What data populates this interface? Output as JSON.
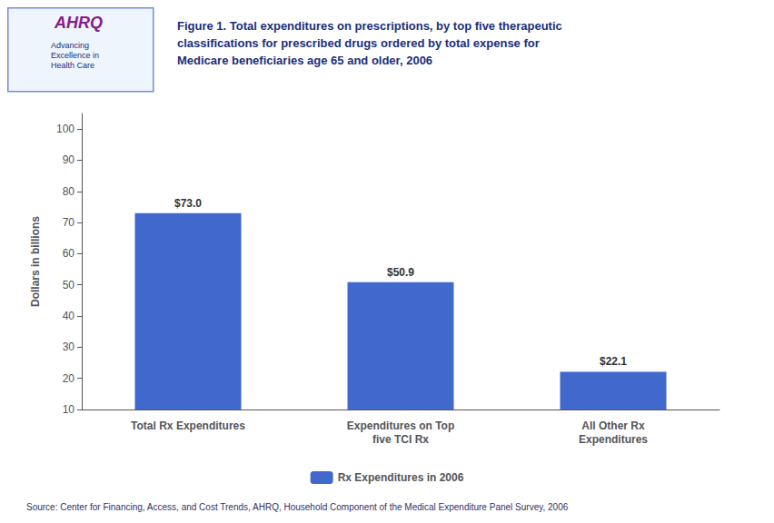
{
  "chart_data": {
    "type": "bar",
    "title": "Figure 1. Total expenditures on prescriptions, by top five therapeutic\nclassifications for prescribed drugs ordered by total expense for\nMedicare beneficiaries age 65 and older, 2006",
    "categories": [
      "Total Rx Expenditures",
      "Expenditures on Top\nfive TCI Rx",
      "All Other Rx\nExpenditures"
    ],
    "series": [
      {
        "name": "Rx Expenditures in 2006",
        "color": "#4169CD",
        "values": [
          73.0,
          50.9,
          22.1
        ],
        "value_labels": [
          "$73.0",
          "$50.9",
          "$22.1"
        ]
      }
    ],
    "ylabel": "Dollars in billions",
    "ylim": [
      10,
      105
    ],
    "yticks": [
      10,
      20,
      30,
      40,
      50,
      60,
      70,
      80,
      90,
      100
    ],
    "grid": false,
    "legend": "bottom",
    "data_labels": true,
    "annotations": [
      "AHRQ",
      "Advancing\nExcellence in\nHealth Care",
      "Source: Center for Financing, Access, and Cost Trends, AHRQ, Household Component of the Medical Expenditure Panel Survey, 2006"
    ]
  }
}
